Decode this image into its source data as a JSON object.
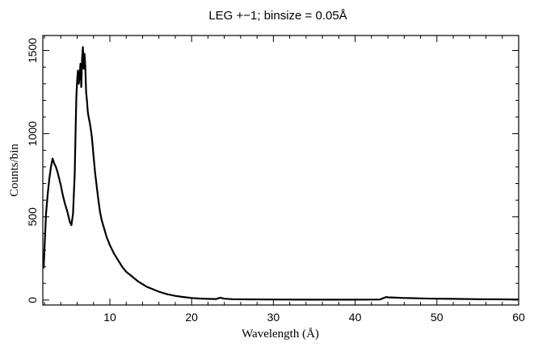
{
  "chart_data": {
    "type": "line",
    "title": "LEG +−1; binsize = 0.05Å",
    "xlabel": "Wavelength (Å)",
    "ylabel": "Counts/bin",
    "xlim": [
      1.8,
      60
    ],
    "ylim": [
      -30,
      1590
    ],
    "xticks": [
      10,
      20,
      30,
      40,
      50,
      60
    ],
    "xtick_labels": [
      "10",
      "20",
      "30",
      "40",
      "50",
      "60"
    ],
    "yticks": [
      0,
      500,
      1000,
      1500
    ],
    "ytick_labels": [
      "0",
      "500",
      "1000",
      "1500"
    ],
    "grid": false,
    "line_color": "#000000",
    "series": [
      {
        "x": [
          1.9,
          2.0,
          2.2,
          2.4,
          2.6,
          2.8,
          3.0,
          3.2,
          3.4,
          3.6,
          3.8,
          4.0,
          4.2,
          4.5,
          4.8,
          5.1,
          5.3,
          5.5,
          5.7,
          5.8,
          5.9,
          6.0,
          6.1,
          6.2,
          6.3,
          6.4,
          6.5,
          6.6,
          6.7,
          6.8,
          6.9,
          7.0,
          7.1,
          7.2,
          7.3,
          7.4,
          7.6,
          7.8,
          8.0,
          8.2,
          8.4,
          8.6,
          8.8,
          9.0,
          9.3,
          9.6,
          10.0,
          10.5,
          11.0,
          11.5,
          12.0,
          12.5,
          13.0,
          13.5,
          14.0,
          14.5,
          15.0,
          16.0,
          17.0,
          18.0,
          19.0,
          20.0,
          21.0,
          22.0,
          23.0,
          23.5,
          24.0,
          25.0,
          27.0,
          30.0,
          35.0,
          40.0,
          43.0,
          43.5,
          43.8,
          44.0,
          45.0,
          46.0,
          47.0,
          48.0,
          50.0,
          52.0,
          55.0,
          58.0,
          60.0
        ],
        "y": [
          190,
          300,
          520,
          640,
          730,
          800,
          850,
          820,
          800,
          770,
          730,
          690,
          640,
          580,
          530,
          470,
          450,
          520,
          760,
          1000,
          1220,
          1320,
          1380,
          1300,
          1340,
          1420,
          1280,
          1450,
          1520,
          1390,
          1480,
          1400,
          1250,
          1200,
          1130,
          1100,
          1050,
          980,
          870,
          760,
          680,
          600,
          530,
          480,
          430,
          380,
          330,
          280,
          240,
          200,
          170,
          150,
          130,
          110,
          95,
          80,
          70,
          50,
          35,
          25,
          18,
          12,
          9,
          7,
          6,
          14,
          8,
          5,
          4,
          3,
          2,
          2,
          3,
          12,
          18,
          16,
          14,
          12,
          11,
          10,
          8,
          7,
          5,
          4,
          3
        ]
      }
    ]
  }
}
